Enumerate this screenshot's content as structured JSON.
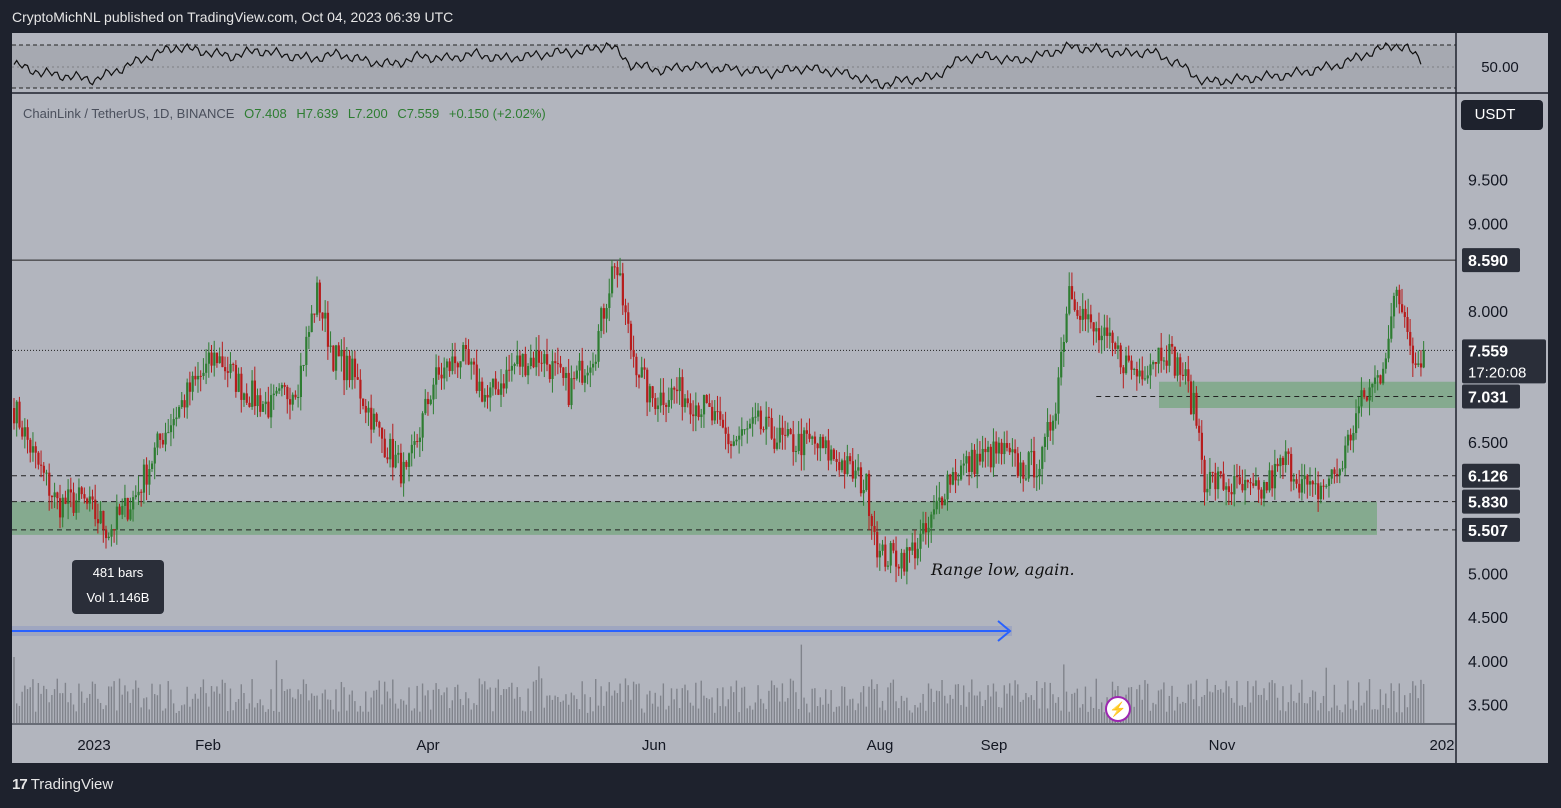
{
  "header": {
    "published_by": "CryptoMichNL published on TradingView.com, Oct 04, 2023 06:39 UTC"
  },
  "legend": {
    "symbol": "ChainLink / TetherUS, 1D, BINANCE",
    "open": "O7.408",
    "high": "H7.639",
    "low": "L7.200",
    "close": "C7.559",
    "change": "+0.150 (+2.02%)"
  },
  "currency_button": "USDT",
  "measure_box": {
    "bars": "481 bars",
    "volume": "Vol 1.146B"
  },
  "annotation": "Range low, again.",
  "footer": {
    "brand": "TradingView"
  },
  "indicator_pane": {
    "label": "50.00"
  },
  "colors": {
    "up": "#2e7d32",
    "down": "#b71c1c",
    "zone": "#7fa88a",
    "arrow": "#2962ff",
    "bg": "#b2b5be"
  },
  "chart_data": {
    "type": "candlestick",
    "symbol": "ChainLink / TetherUS",
    "interval": "1D",
    "exchange": "BINANCE",
    "ylim": [
      3.3,
      10.5
    ],
    "y_ticks": [
      "9.500",
      "9.000",
      "8.000",
      "6.500",
      "5.000",
      "4.500",
      "4.000",
      "3.500"
    ],
    "x_ticks": [
      "2023",
      "Feb",
      "Apr",
      "Jun",
      "Aug",
      "Sep",
      "Nov",
      "202"
    ],
    "price_labels": [
      {
        "value": 8.59,
        "label": "8.590",
        "style": "solid"
      },
      {
        "value": 7.559,
        "label": "7.559",
        "sub": "17:20:08",
        "style": "dotted"
      },
      {
        "value": 7.031,
        "label": "7.031",
        "style": "dashed"
      },
      {
        "value": 6.126,
        "label": "6.126",
        "style": "dashed"
      },
      {
        "value": 5.83,
        "label": "5.830",
        "style": "dashed"
      },
      {
        "value": 5.507,
        "label": "5.507",
        "style": "dashed"
      }
    ],
    "zones": [
      {
        "from": 5.45,
        "to": 5.83,
        "name": "range-low-zone"
      },
      {
        "from": 6.9,
        "to": 7.2,
        "name": "support-zone"
      }
    ],
    "close_path": [
      [
        0,
        6.9
      ],
      [
        8,
        6.3
      ],
      [
        16,
        5.8
      ],
      [
        25,
        5.85
      ],
      [
        35,
        5.5
      ],
      [
        45,
        5.9
      ],
      [
        55,
        6.6
      ],
      [
        65,
        7.1
      ],
      [
        75,
        7.5
      ],
      [
        85,
        7.1
      ],
      [
        95,
        6.9
      ],
      [
        105,
        7.2
      ],
      [
        112,
        8.2
      ],
      [
        118,
        7.5
      ],
      [
        125,
        7.3
      ],
      [
        135,
        6.6
      ],
      [
        145,
        6.1
      ],
      [
        155,
        7.2
      ],
      [
        165,
        7.5
      ],
      [
        175,
        7.0
      ],
      [
        185,
        7.4
      ],
      [
        195,
        7.5
      ],
      [
        205,
        7.1
      ],
      [
        215,
        7.6
      ],
      [
        222,
        8.6
      ],
      [
        228,
        7.6
      ],
      [
        235,
        7.0
      ],
      [
        245,
        7.1
      ],
      [
        255,
        6.9
      ],
      [
        265,
        6.5
      ],
      [
        275,
        6.7
      ],
      [
        285,
        6.5
      ],
      [
        295,
        6.5
      ],
      [
        305,
        6.3
      ],
      [
        315,
        6.0
      ],
      [
        320,
        5.2
      ],
      [
        330,
        5.2
      ],
      [
        338,
        5.5
      ],
      [
        345,
        6.1
      ],
      [
        355,
        6.3
      ],
      [
        365,
        6.4
      ],
      [
        372,
        6.2
      ],
      [
        380,
        6.3
      ],
      [
        385,
        7.0
      ],
      [
        390,
        8.3
      ],
      [
        398,
        7.8
      ],
      [
        405,
        7.6
      ],
      [
        415,
        7.3
      ],
      [
        425,
        7.6
      ],
      [
        432,
        7.3
      ],
      [
        437,
        6.8
      ],
      [
        440,
        6.1
      ],
      [
        450,
        6.0
      ],
      [
        460,
        5.9
      ],
      [
        470,
        6.3
      ],
      [
        480,
        5.9
      ],
      [
        490,
        6.2
      ],
      [
        497,
        6.9
      ],
      [
        505,
        7.3
      ],
      [
        511,
        8.2
      ],
      [
        515,
        7.9
      ],
      [
        518,
        7.4
      ],
      [
        521,
        7.56
      ]
    ],
    "rsi_path": [
      [
        0,
        55
      ],
      [
        10,
        48
      ],
      [
        20,
        45
      ],
      [
        30,
        42
      ],
      [
        40,
        52
      ],
      [
        50,
        62
      ],
      [
        60,
        70
      ],
      [
        70,
        66
      ],
      [
        80,
        62
      ],
      [
        90,
        67
      ],
      [
        100,
        63
      ],
      [
        110,
        60
      ],
      [
        120,
        64
      ],
      [
        130,
        58
      ],
      [
        140,
        55
      ],
      [
        150,
        62
      ],
      [
        160,
        60
      ],
      [
        170,
        64
      ],
      [
        180,
        60
      ],
      [
        190,
        62
      ],
      [
        200,
        65
      ],
      [
        210,
        66
      ],
      [
        220,
        72
      ],
      [
        228,
        55
      ],
      [
        240,
        50
      ],
      [
        250,
        54
      ],
      [
        260,
        52
      ],
      [
        270,
        50
      ],
      [
        280,
        48
      ],
      [
        290,
        52
      ],
      [
        300,
        50
      ],
      [
        310,
        46
      ],
      [
        320,
        38
      ],
      [
        330,
        42
      ],
      [
        340,
        44
      ],
      [
        350,
        60
      ],
      [
        360,
        62
      ],
      [
        370,
        58
      ],
      [
        380,
        63
      ],
      [
        390,
        70
      ],
      [
        400,
        68
      ],
      [
        410,
        64
      ],
      [
        420,
        66
      ],
      [
        430,
        56
      ],
      [
        440,
        40
      ],
      [
        450,
        42
      ],
      [
        460,
        44
      ],
      [
        470,
        46
      ],
      [
        480,
        50
      ],
      [
        490,
        55
      ],
      [
        500,
        64
      ],
      [
        510,
        72
      ],
      [
        515,
        68
      ],
      [
        521,
        58
      ]
    ]
  }
}
